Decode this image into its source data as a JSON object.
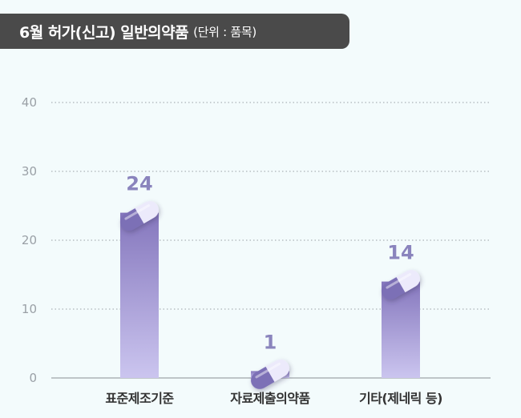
{
  "header": {
    "title": "6월 허가(신고) 일반의약품",
    "unit": "(단위 : 품목)"
  },
  "chart_data": {
    "type": "bar",
    "title": "6월 허가(신고) 일반의약품",
    "unit": "(단위 : 품목)",
    "categories": [
      "표준제조기준",
      "자료제출의약품",
      "기타(제네릭 등)"
    ],
    "values": [
      24,
      1,
      14
    ],
    "ylim": [
      0,
      40
    ],
    "yticks": [
      0,
      10,
      20,
      30,
      40
    ],
    "grid": true,
    "colors": {
      "bar_top": "#8577bd",
      "bar_bottom": "#cbc5ef",
      "capsule_dark": "#7c6fb6",
      "capsule_light": "#eceafb",
      "value_label": "#8a84bd",
      "grid": "#9aa0a6"
    }
  }
}
